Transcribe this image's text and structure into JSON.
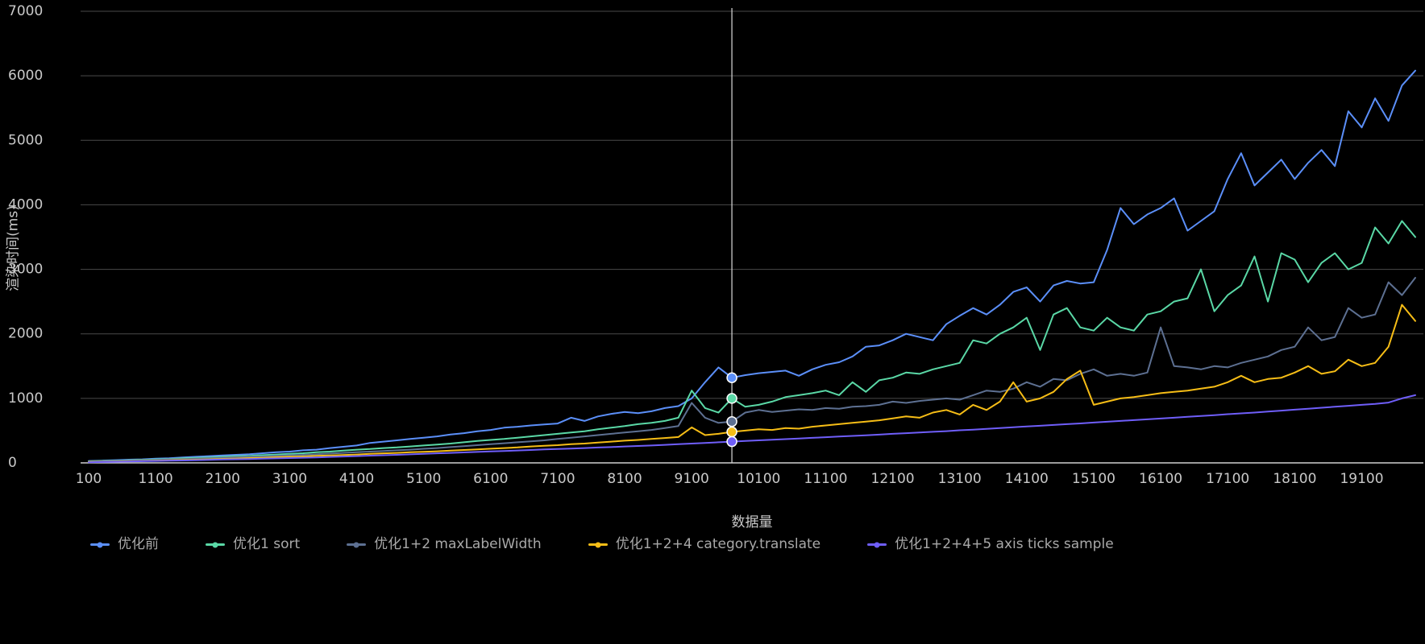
{
  "chart": {
    "background": "#000000",
    "text_color": "#c9c9c9",
    "muted_text_color": "#a9a9a9",
    "grid_color": "#4a4a4a",
    "axis_line_color": "#cfcfcf",
    "crosshair_color": "#d9d9d9",
    "marker_stroke": "#ffffff"
  },
  "chart_data": {
    "type": "line",
    "title": "",
    "xlabel": "数据量",
    "ylabel": "渲染时间(ms)",
    "xlim": [
      100,
      19900
    ],
    "ylim": [
      0,
      7000
    ],
    "y_ticks": [
      0,
      1000,
      2000,
      3000,
      4000,
      5000,
      6000,
      7000
    ],
    "x_ticks": [
      100,
      1100,
      2100,
      3100,
      4100,
      5100,
      6100,
      7100,
      8100,
      9100,
      10100,
      11100,
      12100,
      13100,
      14100,
      15100,
      16100,
      17100,
      18100,
      19100
    ],
    "legend_position": "bottom",
    "grid": "horizontal",
    "highlight": {
      "x": 9700,
      "values": [
        1320,
        1000,
        640,
        480,
        330
      ]
    },
    "x": [
      100,
      300,
      500,
      700,
      900,
      1100,
      1300,
      1500,
      1700,
      1900,
      2100,
      2300,
      2500,
      2700,
      2900,
      3100,
      3300,
      3500,
      3700,
      3900,
      4100,
      4300,
      4500,
      4700,
      4900,
      5100,
      5300,
      5500,
      5700,
      5900,
      6100,
      6300,
      6500,
      6700,
      6900,
      7100,
      7300,
      7500,
      7700,
      7900,
      8100,
      8300,
      8500,
      8700,
      8900,
      9100,
      9300,
      9500,
      9700,
      9900,
      10100,
      10300,
      10500,
      10700,
      10900,
      11100,
      11300,
      11500,
      11700,
      11900,
      12100,
      12300,
      12500,
      12700,
      12900,
      13100,
      13300,
      13500,
      13700,
      13900,
      14100,
      14300,
      14500,
      14700,
      14900,
      15100,
      15300,
      15500,
      15700,
      15900,
      16100,
      16300,
      16500,
      16700,
      16900,
      17100,
      17300,
      17500,
      17700,
      17900,
      18100,
      18300,
      18500,
      18700,
      18900,
      19100,
      19300,
      19500,
      19700,
      19900
    ],
    "series": [
      {
        "name": "优化前",
        "color": "#5B8FF9",
        "values": [
          30,
          35,
          42,
          50,
          55,
          65,
          72,
          85,
          95,
          105,
          115,
          125,
          135,
          150,
          165,
          175,
          195,
          205,
          230,
          250,
          270,
          310,
          330,
          350,
          370,
          390,
          410,
          440,
          460,
          490,
          510,
          545,
          560,
          580,
          595,
          610,
          700,
          650,
          720,
          760,
          790,
          770,
          800,
          850,
          880,
          1000,
          1250,
          1480,
          1320,
          1360,
          1390,
          1410,
          1430,
          1350,
          1450,
          1520,
          1560,
          1650,
          1800,
          1820,
          1900,
          2000,
          1950,
          1900,
          2150,
          2280,
          2400,
          2300,
          2450,
          2650,
          2720,
          2500,
          2750,
          2820,
          2780,
          2800,
          3300,
          3950,
          3700,
          3850,
          3950,
          4100,
          3600,
          3750,
          3900,
          4400,
          4800,
          4300,
          4500,
          4700,
          4400,
          4650,
          4850,
          4600,
          5450,
          5200,
          5650,
          5300,
          5850,
          6080
        ]
      },
      {
        "name": "优化1 sort",
        "color": "#5AD8A6",
        "values": [
          25,
          30,
          35,
          40,
          48,
          55,
          60,
          70,
          78,
          85,
          95,
          105,
          110,
          120,
          130,
          140,
          150,
          165,
          175,
          190,
          205,
          215,
          230,
          240,
          255,
          270,
          285,
          300,
          320,
          340,
          355,
          370,
          390,
          410,
          430,
          450,
          470,
          490,
          520,
          545,
          570,
          600,
          620,
          650,
          700,
          1120,
          850,
          780,
          1000,
          870,
          900,
          950,
          1020,
          1050,
          1080,
          1120,
          1050,
          1250,
          1100,
          1280,
          1320,
          1400,
          1380,
          1450,
          1500,
          1550,
          1900,
          1850,
          2000,
          2100,
          2250,
          1750,
          2300,
          2400,
          2100,
          2050,
          2250,
          2100,
          2050,
          2300,
          2350,
          2500,
          2550,
          3000,
          2350,
          2600,
          2750,
          3200,
          2500,
          3250,
          3150,
          2800,
          3100,
          3250,
          3000,
          3100,
          3650,
          3400,
          3750,
          3500
        ]
      },
      {
        "name": "优化1+2 maxLabelWidth",
        "color": "#5D7092",
        "values": [
          20,
          25,
          30,
          35,
          40,
          45,
          52,
          58,
          65,
          72,
          80,
          88,
          95,
          100,
          110,
          118,
          125,
          135,
          145,
          155,
          165,
          175,
          185,
          195,
          205,
          218,
          230,
          245,
          260,
          275,
          290,
          305,
          320,
          335,
          350,
          370,
          390,
          410,
          430,
          450,
          470,
          490,
          510,
          540,
          570,
          930,
          700,
          620,
          640,
          780,
          820,
          790,
          810,
          830,
          820,
          850,
          840,
          870,
          880,
          900,
          950,
          930,
          960,
          980,
          1000,
          980,
          1050,
          1120,
          1100,
          1150,
          1250,
          1180,
          1300,
          1280,
          1380,
          1450,
          1350,
          1380,
          1350,
          1400,
          2100,
          1500,
          1480,
          1450,
          1500,
          1480,
          1550,
          1600,
          1650,
          1750,
          1800,
          2100,
          1900,
          1950,
          2400,
          2250,
          2300,
          2800,
          2600,
          2870
        ]
      },
      {
        "name": "优化1+2+4 category.translate",
        "color": "#F6BD16",
        "values": [
          15,
          18,
          22,
          26,
          30,
          35,
          40,
          45,
          50,
          55,
          62,
          68,
          75,
          80,
          88,
          95,
          100,
          108,
          115,
          122,
          130,
          140,
          148,
          155,
          165,
          172,
          180,
          190,
          200,
          210,
          220,
          230,
          240,
          255,
          265,
          275,
          290,
          300,
          315,
          330,
          345,
          355,
          370,
          385,
          400,
          550,
          430,
          450,
          480,
          500,
          520,
          510,
          540,
          530,
          560,
          580,
          600,
          620,
          640,
          660,
          690,
          720,
          700,
          780,
          820,
          750,
          900,
          820,
          950,
          1250,
          950,
          1000,
          1100,
          1300,
          1430,
          900,
          950,
          1000,
          1020,
          1050,
          1080,
          1100,
          1120,
          1150,
          1180,
          1250,
          1350,
          1250,
          1300,
          1320,
          1400,
          1500,
          1380,
          1420,
          1600,
          1500,
          1550,
          1800,
          2450,
          2200
        ]
      },
      {
        "name": "优化1+2+4+5 axis ticks sample",
        "color": "#6F5EF9",
        "values": [
          10,
          14,
          18,
          22,
          26,
          30,
          34,
          38,
          42,
          46,
          52,
          56,
          60,
          65,
          70,
          75,
          80,
          85,
          92,
          98,
          105,
          112,
          118,
          125,
          132,
          140,
          148,
          155,
          162,
          170,
          178,
          185,
          192,
          200,
          208,
          215,
          222,
          230,
          238,
          245,
          255,
          262,
          270,
          280,
          290,
          300,
          310,
          320,
          330,
          340,
          350,
          358,
          368,
          378,
          388,
          398,
          408,
          418,
          428,
          438,
          450,
          460,
          470,
          482,
          492,
          505,
          515,
          528,
          540,
          552,
          565,
          575,
          588,
          600,
          612,
          625,
          638,
          650,
          662,
          675,
          688,
          700,
          715,
          728,
          740,
          755,
          768,
          780,
          795,
          810,
          825,
          840,
          855,
          870,
          885,
          900,
          915,
          935,
          1000,
          1050
        ]
      }
    ]
  }
}
